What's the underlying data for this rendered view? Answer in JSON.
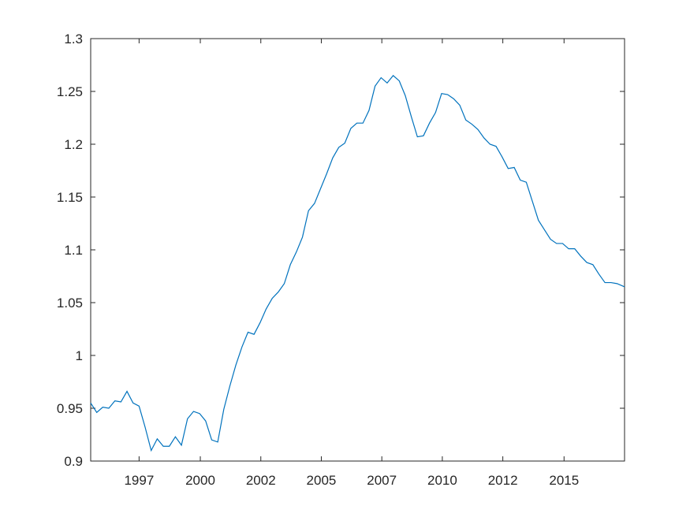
{
  "chart_data": {
    "type": "line",
    "title": "",
    "xlabel": "",
    "ylabel": "",
    "xlim": [
      1995.05,
      2017.11
    ],
    "ylim": [
      0.9,
      1.3
    ],
    "grid": false,
    "colors": {
      "line": "#0072BD",
      "axes": "#262626",
      "background": "#ffffff"
    },
    "x_ticks": [
      {
        "value": 1997.05,
        "label": "1997"
      },
      {
        "value": 1999.58,
        "label": "2000"
      },
      {
        "value": 2002.08,
        "label": "2002"
      },
      {
        "value": 2004.58,
        "label": "2005"
      },
      {
        "value": 2007.08,
        "label": "2007"
      },
      {
        "value": 2009.58,
        "label": "2010"
      },
      {
        "value": 2012.08,
        "label": "2012"
      },
      {
        "value": 2014.61,
        "label": "2015"
      }
    ],
    "y_ticks": [
      {
        "value": 0.9,
        "label": "0.9"
      },
      {
        "value": 0.95,
        "label": "0.95"
      },
      {
        "value": 1.0,
        "label": "1"
      },
      {
        "value": 1.05,
        "label": "1.05"
      },
      {
        "value": 1.1,
        "label": "1.1"
      },
      {
        "value": 1.15,
        "label": "1.15"
      },
      {
        "value": 1.2,
        "label": "1.2"
      },
      {
        "value": 1.25,
        "label": "1.25"
      },
      {
        "value": 1.3,
        "label": "1.3"
      }
    ],
    "series": [
      {
        "x": [
          1995.05,
          1995.3,
          1995.55,
          1995.8,
          1996.05,
          1996.3,
          1996.55,
          1996.8,
          1997.05,
          1997.3,
          1997.55,
          1997.8,
          1998.05,
          1998.3,
          1998.55,
          1998.8,
          1999.05,
          1999.3,
          1999.55,
          1999.8,
          2000.05,
          2000.3,
          2000.55,
          2000.8,
          2001.05,
          2001.3,
          2001.55,
          2001.8,
          2002.05,
          2002.3,
          2002.55,
          2002.8,
          2003.05,
          2003.3,
          2003.55,
          2003.8,
          2004.05,
          2004.3,
          2004.55,
          2004.8,
          2005.05,
          2005.3,
          2005.55,
          2005.8,
          2006.05,
          2006.3,
          2006.55,
          2006.8,
          2007.05,
          2007.3,
          2007.55,
          2007.8,
          2008.05,
          2008.3,
          2008.55,
          2008.8,
          2009.05,
          2009.3,
          2009.55,
          2009.8,
          2010.05,
          2010.3,
          2010.55,
          2010.8,
          2011.05,
          2011.3,
          2011.55,
          2011.8,
          2012.05,
          2012.3,
          2012.55,
          2012.8,
          2013.05,
          2013.3,
          2013.55,
          2013.8,
          2014.05,
          2014.3,
          2014.55,
          2014.8,
          2015.05,
          2015.3,
          2015.55,
          2015.8,
          2016.05,
          2016.3,
          2016.55,
          2016.8,
          2017.11
        ],
        "y": [
          0.955,
          0.946,
          0.951,
          0.95,
          0.957,
          0.956,
          0.966,
          0.955,
          0.952,
          0.932,
          0.91,
          0.921,
          0.914,
          0.914,
          0.923,
          0.915,
          0.94,
          0.947,
          0.945,
          0.938,
          0.92,
          0.918,
          0.949,
          0.971,
          0.991,
          1.008,
          1.022,
          1.02,
          1.031,
          1.044,
          1.054,
          1.06,
          1.068,
          1.086,
          1.098,
          1.112,
          1.137,
          1.144,
          1.158,
          1.172,
          1.187,
          1.197,
          1.201,
          1.215,
          1.22,
          1.22,
          1.232,
          1.255,
          1.263,
          1.258,
          1.265,
          1.26,
          1.246,
          1.226,
          1.207,
          1.208,
          1.22,
          1.23,
          1.248,
          1.247,
          1.243,
          1.237,
          1.223,
          1.219,
          1.214,
          1.206,
          1.2,
          1.198,
          1.188,
          1.177,
          1.178,
          1.166,
          1.164,
          1.146,
          1.128,
          1.119,
          1.11,
          1.106,
          1.106,
          1.101,
          1.101,
          1.094,
          1.088,
          1.086,
          1.077,
          1.069,
          1.069,
          1.068,
          1.065
        ]
      }
    ]
  }
}
